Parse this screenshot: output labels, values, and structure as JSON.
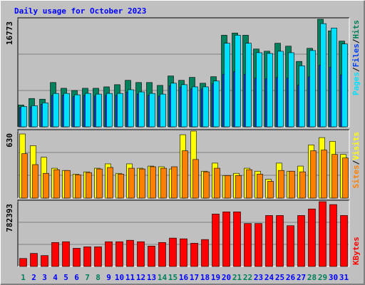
{
  "chart_data": [
    {
      "type": "bar",
      "title": "Daily usage for October 2023",
      "ylim": [
        0,
        16773
      ],
      "yticks": [
        16773
      ],
      "legend_separator": "/",
      "series": [
        {
          "name": "Hits",
          "color": "#00805c",
          "values": [
            3400,
            4420,
            4310,
            6910,
            6010,
            5670,
            6010,
            6010,
            6230,
            6570,
            7250,
            6910,
            6910,
            6460,
            7930,
            7250,
            7710,
            6800,
            7820,
            14280,
            14620,
            14280,
            12130,
            11790,
            13030,
            12580,
            10200,
            12240,
            16773,
            14960,
            13370
          ]
        },
        {
          "name": "Files",
          "color": "#0040ff",
          "values": [
            3000,
            3100,
            3500,
            4900,
            4900,
            4700,
            4900,
            4800,
            4900,
            4900,
            5400,
            5100,
            4900,
            4800,
            6400,
            6200,
            5900,
            5900,
            6700,
            8200,
            8600,
            8200,
            7600,
            7500,
            7700,
            7600,
            6500,
            7800,
            9600,
            9300,
            8100
          ]
        },
        {
          "name": "Pages",
          "color": "#00e0ff",
          "values": [
            3170,
            3290,
            3740,
            5210,
            5210,
            4990,
            5210,
            5100,
            5210,
            5210,
            5780,
            5440,
            5210,
            5100,
            6800,
            6570,
            6230,
            6230,
            7140,
            13030,
            14280,
            13030,
            11560,
            11440,
            11780,
            11560,
            9520,
            11900,
            16090,
            15410,
            12920
          ]
        }
      ]
    },
    {
      "type": "bar",
      "ylim": [
        0,
        630
      ],
      "yticks": [
        630
      ],
      "legend_separator": "/",
      "series": [
        {
          "name": "Visits",
          "color": "#ffff00",
          "values": [
            603,
            493,
            384,
            281,
            260,
            226,
            247,
            281,
            322,
            233,
            322,
            281,
            301,
            295,
            274,
            596,
            630,
            253,
            329,
            212,
            233,
            281,
            253,
            178,
            329,
            253,
            301,
            500,
            569,
            534,
            411
          ]
        },
        {
          "name": "Sites",
          "color": "#ff8000",
          "values": [
            418,
            315,
            233,
            267,
            260,
            219,
            240,
            274,
            288,
            226,
            281,
            274,
            295,
            281,
            295,
            445,
            363,
            247,
            281,
            212,
            212,
            267,
            226,
            158,
            260,
            253,
            247,
            445,
            452,
            411,
            377
          ]
        }
      ]
    },
    {
      "type": "bar",
      "ylim": [
        0,
        782393
      ],
      "yticks": [
        782393
      ],
      "categories": [
        1,
        2,
        3,
        4,
        5,
        6,
        7,
        8,
        9,
        10,
        11,
        12,
        13,
        14,
        15,
        16,
        17,
        18,
        19,
        20,
        21,
        22,
        23,
        24,
        25,
        26,
        27,
        28,
        29,
        30,
        31
      ],
      "category_colors": [
        "#00805c",
        "#0000ff",
        "#0000ff",
        "#0000ff",
        "#0000ff",
        "#0000ff",
        "#00805c",
        "#00805c",
        "#0000ff",
        "#0000ff",
        "#0000ff",
        "#0000ff",
        "#0000ff",
        "#00805c",
        "#00805c",
        "#0000ff",
        "#0000ff",
        "#0000ff",
        "#0000ff",
        "#0000ff",
        "#00805c",
        "#00805c",
        "#0000ff",
        "#0000ff",
        "#0000ff",
        "#0000ff",
        "#0000ff",
        "#00805c",
        "#00805c",
        "#0000ff",
        "#0000ff"
      ],
      "series": [
        {
          "name": "KBytes",
          "color": "#ff0000",
          "values": [
            96700,
            158240,
            131870,
            290100,
            298890,
            219780,
            237360,
            237360,
            298890,
            298890,
            316480,
            298890,
            246150,
            290100,
            342850,
            334060,
            281310,
            325270,
            632950,
            659330,
            659330,
            518670,
            518670,
            615370,
            615370,
            492300,
            615370,
            694490,
            782393,
            747240,
            615370
          ]
        }
      ]
    }
  ]
}
